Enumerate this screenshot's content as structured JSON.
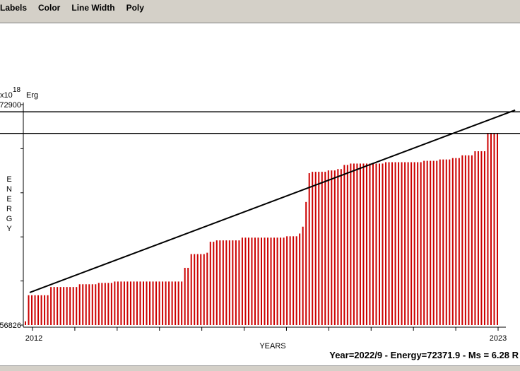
{
  "menubar": {
    "items": [
      "Labels",
      "Color",
      "Line Width",
      "Poly"
    ]
  },
  "status": {
    "readout": "Year=2022/9 - Energy=72371.9 - Ms = 6.28 R"
  },
  "colors": {
    "bars": "#cc0000",
    "lines": "#000000",
    "menubar": "#d4d0c8"
  },
  "chart_data": {
    "type": "bar",
    "ylabel": "ENERGY",
    "y_multiplier_label": "x10",
    "y_multiplier_exp": "18",
    "y_unit": "Erg",
    "xlabel": "YEARS",
    "ylim": [
      56826,
      72900
    ],
    "y_tick_labels": [
      "72900",
      "56826"
    ],
    "xlim": [
      2012,
      2023
    ],
    "x_tick_labels": [
      "2012",
      "2023"
    ],
    "horizontal_lines": [
      72371.9,
      70800
    ],
    "trend_line": {
      "start": [
        2012,
        59200
      ],
      "end": [
        2023.4,
        72500
      ]
    },
    "values": [
      57100,
      59000,
      59000,
      59000,
      59000,
      59000,
      59000,
      59000,
      59600,
      59600,
      59600,
      59600,
      59600,
      59600,
      59600,
      59600,
      59600,
      59800,
      59800,
      59800,
      59800,
      59800,
      59800,
      59900,
      59900,
      59900,
      59900,
      59900,
      60000,
      60000,
      60000,
      60000,
      60000,
      60000,
      60000,
      60000,
      60000,
      60000,
      60000,
      60000,
      60000,
      60000,
      60000,
      60000,
      60000,
      60000,
      60000,
      60000,
      60000,
      60000,
      61000,
      61000,
      62000,
      62000,
      62000,
      62000,
      62000,
      62100,
      62900,
      62900,
      63000,
      63000,
      63000,
      63000,
      63000,
      63000,
      63000,
      63000,
      63200,
      63200,
      63200,
      63200,
      63200,
      63200,
      63200,
      63200,
      63200,
      63200,
      63200,
      63200,
      63200,
      63200,
      63300,
      63300,
      63300,
      63300,
      63500,
      64000,
      65800,
      67900,
      68000,
      68000,
      68000,
      68000,
      68000,
      68100,
      68100,
      68100,
      68200,
      68200,
      68500,
      68500,
      68600,
      68600,
      68600,
      68600,
      68600,
      68600,
      68600,
      68600,
      68600,
      68600,
      68600,
      68700,
      68700,
      68700,
      68700,
      68700,
      68700,
      68700,
      68700,
      68700,
      68700,
      68700,
      68700,
      68800,
      68800,
      68800,
      68800,
      68800,
      68900,
      68900,
      68900,
      68900,
      69000,
      69000,
      69000,
      69200,
      69200,
      69200,
      69200,
      69500,
      69500,
      69500,
      69500,
      70800,
      70800,
      70800,
      70800
    ]
  }
}
